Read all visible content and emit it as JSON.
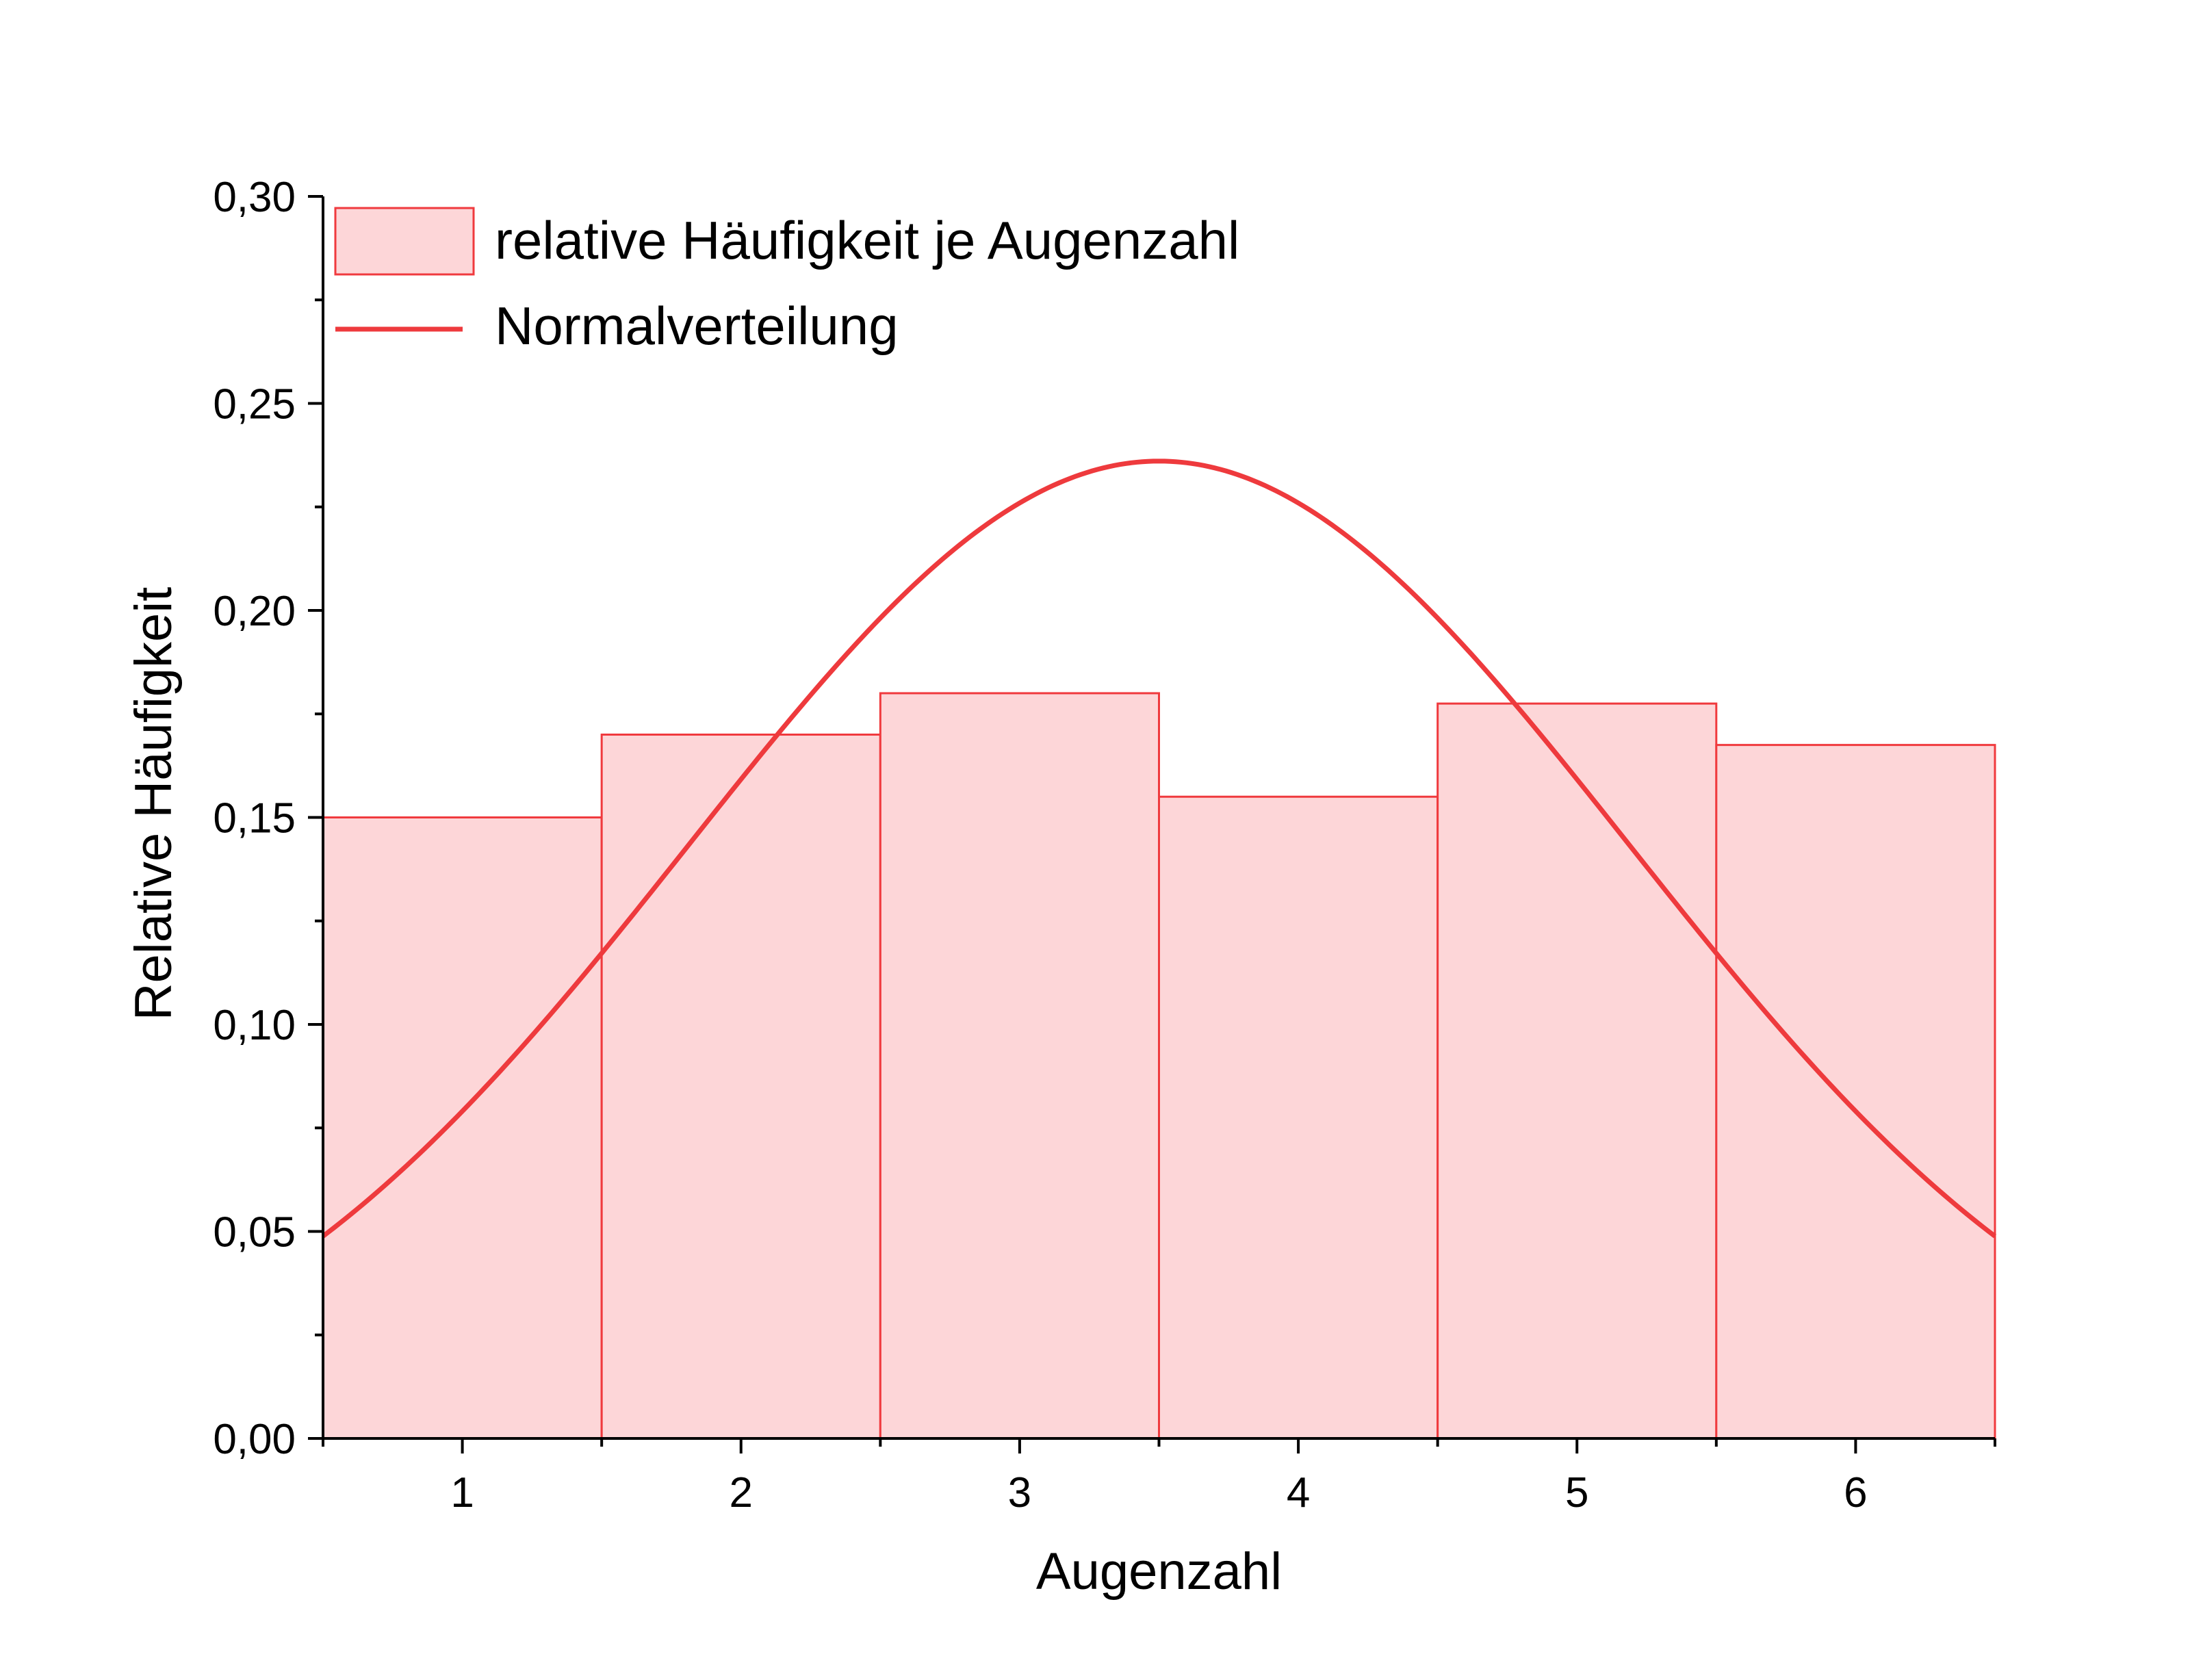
{
  "chart_data": {
    "type": "bar",
    "xlabel": "Augenzahl",
    "ylabel": "Relative Häufigkeit",
    "categories": [
      "1",
      "2",
      "3",
      "4",
      "5",
      "6"
    ],
    "x": [
      1,
      2,
      3,
      4,
      5,
      6
    ],
    "xlim": [
      0.5,
      6.5
    ],
    "ylim": [
      0,
      0.3
    ],
    "y_ticks": [
      "0,00",
      "0,05",
      "0,10",
      "0,15",
      "0,20",
      "0,25",
      "0,30"
    ],
    "grid": false,
    "legend_position": "top-left",
    "series": [
      {
        "name": "relative Häufigkeit je Augenzahl",
        "type": "bar",
        "values": [
          0.15,
          0.17,
          0.18,
          0.155,
          0.1775,
          0.1675
        ],
        "fill_color": "#fdd6d8",
        "stroke_color": "#f03a3e"
      },
      {
        "name": "Normalverteilung",
        "type": "line",
        "mean": 3.5,
        "std_dev": 1.69,
        "line_color": "#ee3a3d"
      }
    ]
  }
}
